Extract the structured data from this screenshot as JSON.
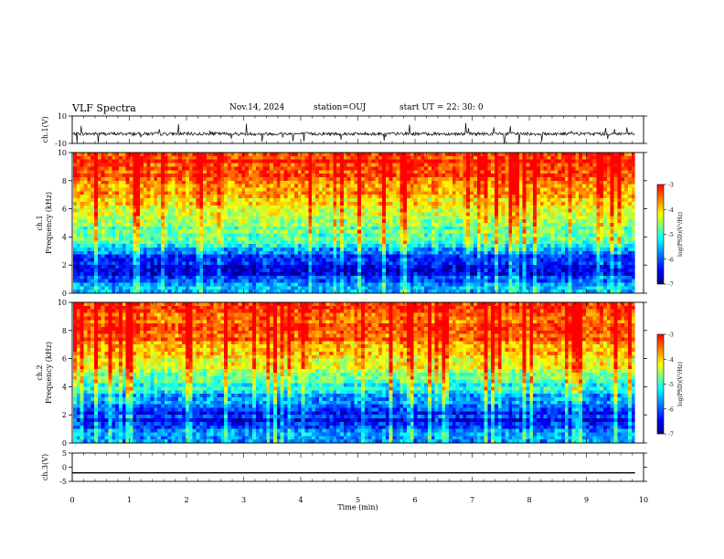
{
  "header": {
    "title": "VLF Spectra",
    "date": "Nov.14, 2024",
    "station": "station=OUJ",
    "start": "start  UT =   22: 30: 0"
  },
  "colors": {
    "waveform": "#000000",
    "colormap": [
      "#00007f",
      "#0000ff",
      "#0080ff",
      "#00ffff",
      "#80ff80",
      "#ffff00",
      "#ff8000",
      "#ff0000"
    ]
  },
  "chart_data": [
    {
      "type": "line",
      "panel": "ch1-waveform",
      "ylabel": "ch.1(V)",
      "ylim": [
        -10,
        10
      ],
      "yticks": [
        "10",
        "-10"
      ],
      "baseline": -3,
      "description": "noisy waveform"
    },
    {
      "type": "heatmap",
      "panel": "ch1-spectrogram",
      "ylabel": [
        "ch.1",
        "Frequency (kHz)"
      ],
      "ylim": [
        0,
        10
      ],
      "yticks": [
        "0",
        "2",
        "4",
        "6",
        "8",
        "10"
      ],
      "colorbar": {
        "label": "log(PSD)(V²/Hz)",
        "range": [
          -7,
          -3
        ],
        "ticks": [
          "-3",
          "-4",
          "-5",
          "-6",
          "-7"
        ]
      },
      "band_profile_log_psd": [
        {
          "freq_khz": 0.5,
          "value": -5.5
        },
        {
          "freq_khz": 1.5,
          "value": -6.6
        },
        {
          "freq_khz": 2.5,
          "value": -6.2
        },
        {
          "freq_khz": 3.5,
          "value": -5.2
        },
        {
          "freq_khz": 4.5,
          "value": -4.8
        },
        {
          "freq_khz": 5.5,
          "value": -4.5
        },
        {
          "freq_khz": 6.5,
          "value": -4.0
        },
        {
          "freq_khz": 7.5,
          "value": -3.5
        },
        {
          "freq_khz": 8.5,
          "value": -3.3
        },
        {
          "freq_khz": 9.5,
          "value": -3.2
        }
      ]
    },
    {
      "type": "heatmap",
      "panel": "ch2-spectrogram",
      "ylabel": [
        "ch.2",
        "Frequency (kHz)"
      ],
      "ylim": [
        0,
        10
      ],
      "yticks": [
        "0",
        "2",
        "4",
        "6",
        "8",
        "10"
      ],
      "colorbar": {
        "label": "log(PSD)(V²/Hz)",
        "range": [
          -7,
          -3
        ],
        "ticks": [
          "-3",
          "-4",
          "-5",
          "-6",
          "-7"
        ]
      },
      "band_profile_log_psd": [
        {
          "freq_khz": 0.5,
          "value": -5.6
        },
        {
          "freq_khz": 1.5,
          "value": -6.4
        },
        {
          "freq_khz": 2.5,
          "value": -6.2
        },
        {
          "freq_khz": 3.5,
          "value": -5.5
        },
        {
          "freq_khz": 4.5,
          "value": -4.8
        },
        {
          "freq_khz": 5.5,
          "value": -4.3
        },
        {
          "freq_khz": 6.5,
          "value": -3.8
        },
        {
          "freq_khz": 7.5,
          "value": -3.5
        },
        {
          "freq_khz": 8.5,
          "value": -3.4
        },
        {
          "freq_khz": 9.5,
          "value": -3.3
        }
      ]
    },
    {
      "type": "line",
      "panel": "ch3-waveform",
      "ylabel": "ch.3(V)",
      "ylim": [
        -5,
        5
      ],
      "yticks": [
        "5",
        "0",
        "-5"
      ],
      "baseline": -2,
      "description": "flat line"
    }
  ],
  "xaxis": {
    "label": "Time (min)",
    "range": [
      0,
      10
    ],
    "data_end": 9.85,
    "ticks": [
      "0",
      "1",
      "2",
      "3",
      "4",
      "5",
      "6",
      "7",
      "8",
      "9",
      "10"
    ]
  }
}
